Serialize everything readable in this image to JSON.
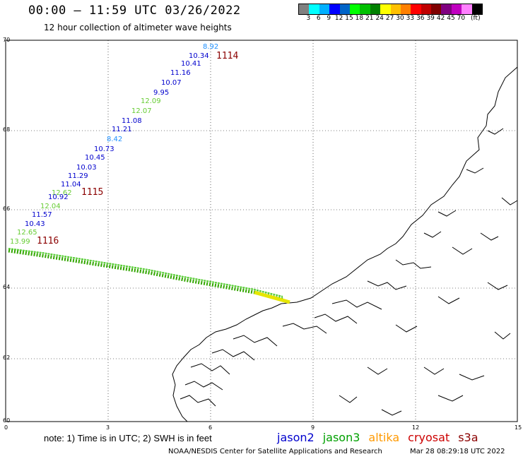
{
  "header": {
    "title": "00:00 – 11:59 UTC 03/26/2022",
    "subtitle": "12 hour collection of altimeter wave heights"
  },
  "colorbar": {
    "colors": [
      "#808080",
      "#00ffff",
      "#00b0ff",
      "#0000ff",
      "#0064c8",
      "#00ff00",
      "#00c000",
      "#008000",
      "#ffff00",
      "#ffc000",
      "#ff8000",
      "#ff0000",
      "#c00000",
      "#800000",
      "#800080",
      "#c000c0",
      "#ff80ff",
      "#000000"
    ],
    "labels": [
      "3",
      "6",
      "9",
      "12",
      "15",
      "18",
      "21",
      "24",
      "27",
      "30",
      "33",
      "36",
      "39",
      "42",
      "45",
      "70",
      "(ft)"
    ]
  },
  "axes": {
    "x_ticks": [
      "0",
      "3",
      "6",
      "9",
      "12",
      "15"
    ],
    "y_ticks": [
      "70",
      "68",
      "66",
      "64",
      "62",
      "60"
    ]
  },
  "passes": [
    {
      "label": "1114",
      "color": "#8b0000"
    },
    {
      "label": "1115",
      "color": "#8b0000"
    },
    {
      "label": "1116",
      "color": "#8b0000"
    }
  ],
  "track_values": [
    {
      "value": "8.92",
      "color": "#1e90ff"
    },
    {
      "value": "10.34",
      "color": "#0000cd"
    },
    {
      "value": "10.41",
      "color": "#0000cd"
    },
    {
      "value": "11.16",
      "color": "#0000cd"
    },
    {
      "value": "10.07",
      "color": "#0000cd"
    },
    {
      "value": "9.95",
      "color": "#0000cd"
    },
    {
      "value": "12.09",
      "color": "#66cc33"
    },
    {
      "value": "12.07",
      "color": "#66cc33"
    },
    {
      "value": "11.08",
      "color": "#0000cd"
    },
    {
      "value": "11.21",
      "color": "#0000cd"
    },
    {
      "value": "8.42",
      "color": "#1e90ff"
    },
    {
      "value": "10.73",
      "color": "#0000cd"
    },
    {
      "value": "10.45",
      "color": "#0000cd"
    },
    {
      "value": "10.03",
      "color": "#0000cd"
    },
    {
      "value": "11.29",
      "color": "#0000cd"
    },
    {
      "value": "11.04",
      "color": "#0000cd"
    },
    {
      "value": "12.62",
      "color": "#66cc33"
    },
    {
      "value": "10.92",
      "color": "#0000cd"
    },
    {
      "value": "12.04",
      "color": "#66cc33"
    },
    {
      "value": "11.57",
      "color": "#0000cd"
    },
    {
      "value": "10.43",
      "color": "#0000cd"
    },
    {
      "value": "12.65",
      "color": "#66cc33"
    },
    {
      "value": "13.99",
      "color": "#66cc33"
    }
  ],
  "footer": {
    "note": "note:  1) Time is in UTC;  2) SWH is in feet",
    "legend": [
      {
        "name": "jason2",
        "color": "#0000cd"
      },
      {
        "name": "jason3",
        "color": "#00a000"
      },
      {
        "name": "altika",
        "color": "#ff9900"
      },
      {
        "name": "cryosat",
        "color": "#cc0000"
      },
      {
        "name": "s3a",
        "color": "#8b0000"
      }
    ],
    "credit": "NOAA/NESDIS Center for Satellite Applications and Research",
    "timestamp": "Mar 28 08:29:18 UTC 2022"
  }
}
